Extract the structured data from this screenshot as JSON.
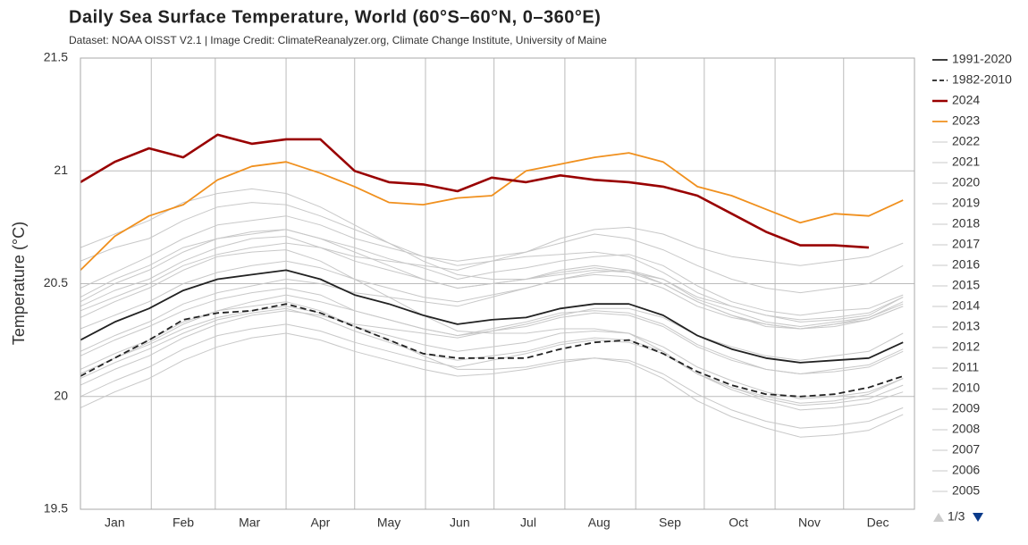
{
  "chart_data": {
    "type": "line",
    "title": "Daily Sea Surface Temperature, World (60°S–60°N, 0–360°E)",
    "subtitle": "Dataset: NOAA OISST V2.1 | Image Credit: ClimateReanalyzer.org, Climate Change Institute, University of Maine",
    "y_label": "Temperature (°C)",
    "legend_page": "1/3",
    "legend_position": "right",
    "grid": true,
    "xlim": [
      1,
      366
    ],
    "ylim": [
      19.5,
      21.5
    ],
    "yticks": [
      19.5,
      20,
      20.5,
      21,
      21.5
    ],
    "xticks": [
      {
        "value": 16,
        "label": "Jan"
      },
      {
        "value": 46,
        "label": "Feb"
      },
      {
        "value": 75,
        "label": "Mar"
      },
      {
        "value": 106,
        "label": "Apr"
      },
      {
        "value": 136,
        "label": "May"
      },
      {
        "value": 167,
        "label": "Jun"
      },
      {
        "value": 197,
        "label": "Jul"
      },
      {
        "value": 228,
        "label": "Aug"
      },
      {
        "value": 259,
        "label": "Sep"
      },
      {
        "value": 289,
        "label": "Oct"
      },
      {
        "value": 320,
        "label": "Nov"
      },
      {
        "value": 350,
        "label": "Dec"
      }
    ],
    "xgrid": [
      32,
      60,
      91,
      121,
      152,
      182,
      213,
      244,
      274,
      305,
      335
    ],
    "x": [
      1,
      16,
      31,
      46,
      61,
      76,
      91,
      106,
      121,
      136,
      151,
      166,
      181,
      196,
      211,
      226,
      241,
      256,
      271,
      286,
      301,
      316,
      331,
      346,
      361
    ],
    "series": [
      {
        "name": "1991-2020",
        "color": "#222222",
        "dash": false,
        "values": [
          20.25,
          20.33,
          20.39,
          20.47,
          20.52,
          20.54,
          20.56,
          20.52,
          20.45,
          20.41,
          20.36,
          20.32,
          20.34,
          20.35,
          20.39,
          20.41,
          20.41,
          20.36,
          20.27,
          20.21,
          20.17,
          20.15,
          20.16,
          20.17,
          20.24
        ]
      },
      {
        "name": "1982-2010",
        "color": "#222222",
        "dash": true,
        "values": [
          20.09,
          20.17,
          20.25,
          20.34,
          20.37,
          20.38,
          20.41,
          20.37,
          20.31,
          20.25,
          20.19,
          20.17,
          20.17,
          20.17,
          20.21,
          20.24,
          20.25,
          20.19,
          20.11,
          20.05,
          20.01,
          20.0,
          20.01,
          20.04,
          20.09
        ]
      },
      {
        "name": "2024",
        "color": "#990000",
        "dash": false,
        "values": [
          20.95,
          21.04,
          21.1,
          21.06,
          21.16,
          21.12,
          21.14,
          21.14,
          21.0,
          20.95,
          20.94,
          20.91,
          20.97,
          20.95,
          20.98,
          20.96,
          20.95,
          20.93,
          20.89,
          20.81,
          20.73,
          20.67,
          20.67,
          20.66,
          null
        ]
      },
      {
        "name": "2023",
        "color": "#f0901e",
        "dash": false,
        "values": [
          20.56,
          20.71,
          20.8,
          20.85,
          20.96,
          21.02,
          21.04,
          20.99,
          20.93,
          20.86,
          20.85,
          20.88,
          20.89,
          21.0,
          21.03,
          21.06,
          21.08,
          21.04,
          20.93,
          20.89,
          20.83,
          20.77,
          20.81,
          20.8,
          20.87
        ]
      },
      {
        "name": "2022",
        "color": "#c8c8c8",
        "dash": false,
        "values": [
          20.44,
          20.52,
          20.58,
          20.66,
          20.7,
          20.72,
          20.74,
          20.7,
          20.66,
          20.61,
          20.57,
          20.52,
          20.55,
          20.57,
          20.6,
          20.62,
          20.63,
          20.58,
          20.49,
          20.42,
          20.38,
          20.36,
          20.38,
          20.39,
          20.45
        ]
      },
      {
        "name": "2021",
        "color": "#c8c8c8",
        "dash": false,
        "values": [
          20.4,
          20.47,
          20.52,
          20.6,
          20.66,
          20.7,
          20.71,
          20.66,
          20.6,
          20.56,
          20.52,
          20.48,
          20.5,
          20.52,
          20.55,
          20.57,
          20.55,
          20.52,
          20.43,
          20.38,
          20.33,
          20.31,
          20.33,
          20.35,
          20.41
        ]
      },
      {
        "name": "2020",
        "color": "#c8c8c8",
        "dash": false,
        "values": [
          20.6,
          20.66,
          20.7,
          20.78,
          20.84,
          20.86,
          20.85,
          20.8,
          20.74,
          20.68,
          20.62,
          20.58,
          20.6,
          20.62,
          20.63,
          20.64,
          20.62,
          20.55,
          20.46,
          20.4,
          20.36,
          20.33,
          20.34,
          20.36,
          20.44
        ]
      },
      {
        "name": "2019",
        "color": "#c8c8c8",
        "dash": false,
        "values": [
          20.48,
          20.55,
          20.62,
          20.7,
          20.76,
          20.78,
          20.8,
          20.76,
          20.7,
          20.66,
          20.62,
          20.6,
          20.62,
          20.64,
          20.68,
          20.72,
          20.7,
          20.65,
          20.58,
          20.52,
          20.48,
          20.46,
          20.48,
          20.5,
          20.58
        ]
      },
      {
        "name": "2018",
        "color": "#c8c8c8",
        "dash": false,
        "values": [
          20.3,
          20.36,
          20.42,
          20.5,
          20.55,
          20.58,
          20.6,
          20.57,
          20.52,
          20.48,
          20.44,
          20.42,
          20.45,
          20.48,
          20.52,
          20.54,
          20.53,
          20.48,
          20.4,
          20.35,
          20.32,
          20.3,
          20.32,
          20.35,
          20.42
        ]
      },
      {
        "name": "2017",
        "color": "#c8c8c8",
        "dash": false,
        "values": [
          20.42,
          20.5,
          20.56,
          20.64,
          20.7,
          20.73,
          20.74,
          20.7,
          20.64,
          20.58,
          20.52,
          20.48,
          20.5,
          20.52,
          20.56,
          20.58,
          20.56,
          20.5,
          20.42,
          20.36,
          20.31,
          20.3,
          20.31,
          20.34,
          20.4
        ]
      },
      {
        "name": "2016",
        "color": "#c8c8c8",
        "dash": false,
        "values": [
          20.66,
          20.72,
          20.78,
          20.86,
          20.9,
          20.92,
          20.9,
          20.84,
          20.76,
          20.68,
          20.6,
          20.54,
          20.52,
          20.52,
          20.54,
          20.56,
          20.55,
          20.5,
          20.42,
          20.36,
          20.32,
          20.3,
          20.32,
          20.34,
          20.4
        ]
      },
      {
        "name": "2015",
        "color": "#c8c8c8",
        "dash": false,
        "values": [
          20.38,
          20.44,
          20.5,
          20.58,
          20.63,
          20.66,
          20.68,
          20.66,
          20.62,
          20.6,
          20.58,
          20.56,
          20.6,
          20.64,
          20.7,
          20.74,
          20.75,
          20.72,
          20.66,
          20.62,
          20.6,
          20.58,
          20.6,
          20.62,
          20.68
        ]
      },
      {
        "name": "2014",
        "color": "#c8c8c8",
        "dash": false,
        "values": [
          20.2,
          20.27,
          20.33,
          20.41,
          20.46,
          20.49,
          20.52,
          20.5,
          20.46,
          20.44,
          20.42,
          20.4,
          20.44,
          20.48,
          20.52,
          20.55,
          20.56,
          20.52,
          20.44,
          20.4,
          20.36,
          20.34,
          20.35,
          20.37,
          20.44
        ]
      },
      {
        "name": "2013",
        "color": "#c8c8c8",
        "dash": false,
        "values": [
          20.18,
          20.25,
          20.31,
          20.38,
          20.43,
          20.46,
          20.48,
          20.45,
          20.38,
          20.34,
          20.3,
          20.27,
          20.29,
          20.31,
          20.35,
          20.37,
          20.36,
          20.31,
          20.22,
          20.16,
          20.12,
          20.1,
          20.12,
          20.14,
          20.21
        ]
      },
      {
        "name": "2012",
        "color": "#c8c8c8",
        "dash": false,
        "values": [
          20.1,
          20.17,
          20.24,
          20.32,
          20.38,
          20.42,
          20.45,
          20.42,
          20.38,
          20.34,
          20.3,
          20.27,
          20.3,
          20.33,
          20.37,
          20.38,
          20.37,
          20.32,
          20.23,
          20.17,
          20.12,
          20.1,
          20.11,
          20.13,
          20.2
        ]
      },
      {
        "name": "2011",
        "color": "#c8c8c8",
        "dash": false,
        "values": [
          20.08,
          20.15,
          20.21,
          20.28,
          20.34,
          20.37,
          20.39,
          20.35,
          20.29,
          20.24,
          20.19,
          20.16,
          20.18,
          20.2,
          20.24,
          20.26,
          20.25,
          20.2,
          20.1,
          20.04,
          19.99,
          19.96,
          19.97,
          19.99,
          20.05
        ]
      },
      {
        "name": "2010",
        "color": "#c8c8c8",
        "dash": false,
        "values": [
          20.35,
          20.42,
          20.48,
          20.56,
          20.62,
          20.64,
          20.65,
          20.6,
          20.52,
          20.44,
          20.36,
          20.29,
          20.28,
          20.28,
          20.3,
          20.3,
          20.28,
          20.2,
          20.1,
          20.03,
          19.98,
          19.94,
          19.95,
          19.97,
          20.02
        ]
      },
      {
        "name": "2009",
        "color": "#c8c8c8",
        "dash": false,
        "values": [
          20.05,
          20.12,
          20.18,
          20.26,
          20.32,
          20.36,
          20.38,
          20.36,
          20.32,
          20.3,
          20.28,
          20.26,
          20.29,
          20.32,
          20.36,
          20.39,
          20.39,
          20.35,
          20.27,
          20.22,
          20.18,
          20.16,
          20.18,
          20.2,
          20.28
        ]
      },
      {
        "name": "2008",
        "color": "#c8c8c8",
        "dash": false,
        "values": [
          19.95,
          20.02,
          20.08,
          20.16,
          20.22,
          20.26,
          20.28,
          20.25,
          20.2,
          20.16,
          20.12,
          20.09,
          20.1,
          20.12,
          20.15,
          20.17,
          20.16,
          20.1,
          20.01,
          19.94,
          19.89,
          19.86,
          19.87,
          19.89,
          19.95
        ]
      },
      {
        "name": "2007",
        "color": "#c8c8c8",
        "dash": false,
        "values": [
          20.12,
          20.19,
          20.25,
          20.33,
          20.38,
          20.4,
          20.42,
          20.38,
          20.31,
          20.25,
          20.18,
          20.12,
          20.12,
          20.13,
          20.16,
          20.17,
          20.15,
          20.08,
          19.98,
          19.91,
          19.86,
          19.82,
          19.83,
          19.85,
          19.92
        ]
      },
      {
        "name": "2006",
        "color": "#c8c8c8",
        "dash": false,
        "values": [
          20.0,
          20.07,
          20.13,
          20.21,
          20.27,
          20.3,
          20.32,
          20.29,
          20.24,
          20.2,
          20.16,
          20.13,
          20.16,
          20.19,
          20.23,
          20.25,
          20.24,
          20.19,
          20.1,
          20.04,
          20.0,
          19.97,
          19.98,
          20.01,
          20.08
        ]
      },
      {
        "name": "2005",
        "color": "#c8c8c8",
        "dash": false,
        "values": [
          20.1,
          20.17,
          20.23,
          20.3,
          20.35,
          20.38,
          20.4,
          20.37,
          20.31,
          20.27,
          20.23,
          20.2,
          20.22,
          20.24,
          20.28,
          20.29,
          20.28,
          20.22,
          20.13,
          20.07,
          20.02,
          19.99,
          20.0,
          20.02,
          20.08
        ]
      }
    ]
  }
}
